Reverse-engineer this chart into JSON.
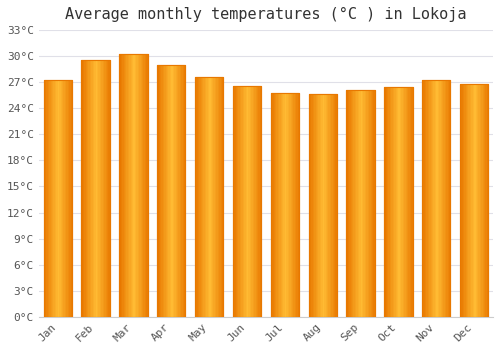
{
  "title": "Average monthly temperatures (°C ) in Lokoja",
  "months": [
    "Jan",
    "Feb",
    "Mar",
    "Apr",
    "May",
    "Jun",
    "Jul",
    "Aug",
    "Sep",
    "Oct",
    "Nov",
    "Dec"
  ],
  "temperatures": [
    27.2,
    29.5,
    30.3,
    29.0,
    27.6,
    26.6,
    25.8,
    25.6,
    26.1,
    26.5,
    27.2,
    26.8
  ],
  "bar_color_center": "#FFB733",
  "bar_color_edge": "#E87800",
  "background_color": "#ffffff",
  "plot_background": "#ffffff",
  "ytick_labels": [
    "0°C",
    "3°C",
    "6°C",
    "9°C",
    "12°C",
    "15°C",
    "18°C",
    "21°C",
    "24°C",
    "27°C",
    "30°C",
    "33°C"
  ],
  "ytick_values": [
    0,
    3,
    6,
    9,
    12,
    15,
    18,
    21,
    24,
    27,
    30,
    33
  ],
  "ylim": [
    0,
    33
  ],
  "title_fontsize": 11,
  "tick_fontsize": 8,
  "grid_color": "#e0e0e8",
  "font_family": "monospace",
  "bar_width": 0.75
}
